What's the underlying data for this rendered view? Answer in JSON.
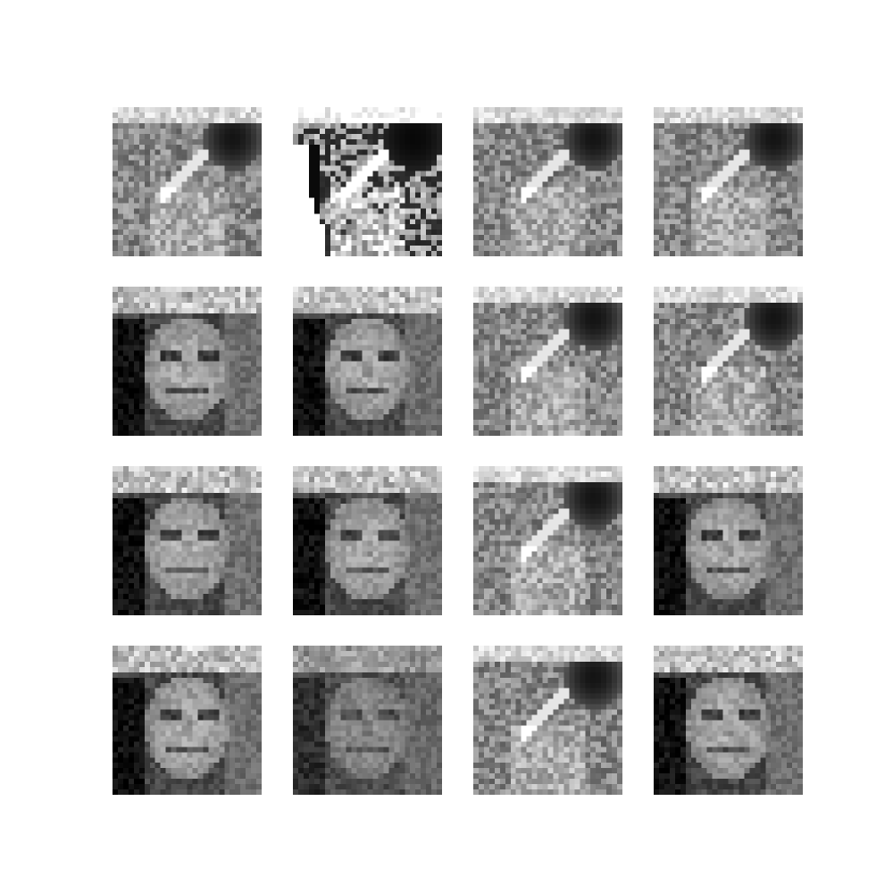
{
  "figure": {
    "rows": 4,
    "cols": 4,
    "colormap": "gray",
    "tiles": [
      {
        "variant": "hair-streak"
      },
      {
        "variant": "hair-streak-high-contrast"
      },
      {
        "variant": "hair-streak"
      },
      {
        "variant": "hair-streak"
      },
      {
        "variant": "smiling-face-dark-hair"
      },
      {
        "variant": "smiling-face-dark-hair"
      },
      {
        "variant": "hair-streak"
      },
      {
        "variant": "hair-streak"
      },
      {
        "variant": "smiling-face-dark-hair"
      },
      {
        "variant": "smiling-face-dark-hair"
      },
      {
        "variant": "hair-streak"
      },
      {
        "variant": "smiling-face-dark-hair"
      },
      {
        "variant": "smiling-face-dark-hair"
      },
      {
        "variant": "smiling-face-faded"
      },
      {
        "variant": "hair-streak"
      },
      {
        "variant": "smiling-face-dark-hair"
      }
    ]
  }
}
